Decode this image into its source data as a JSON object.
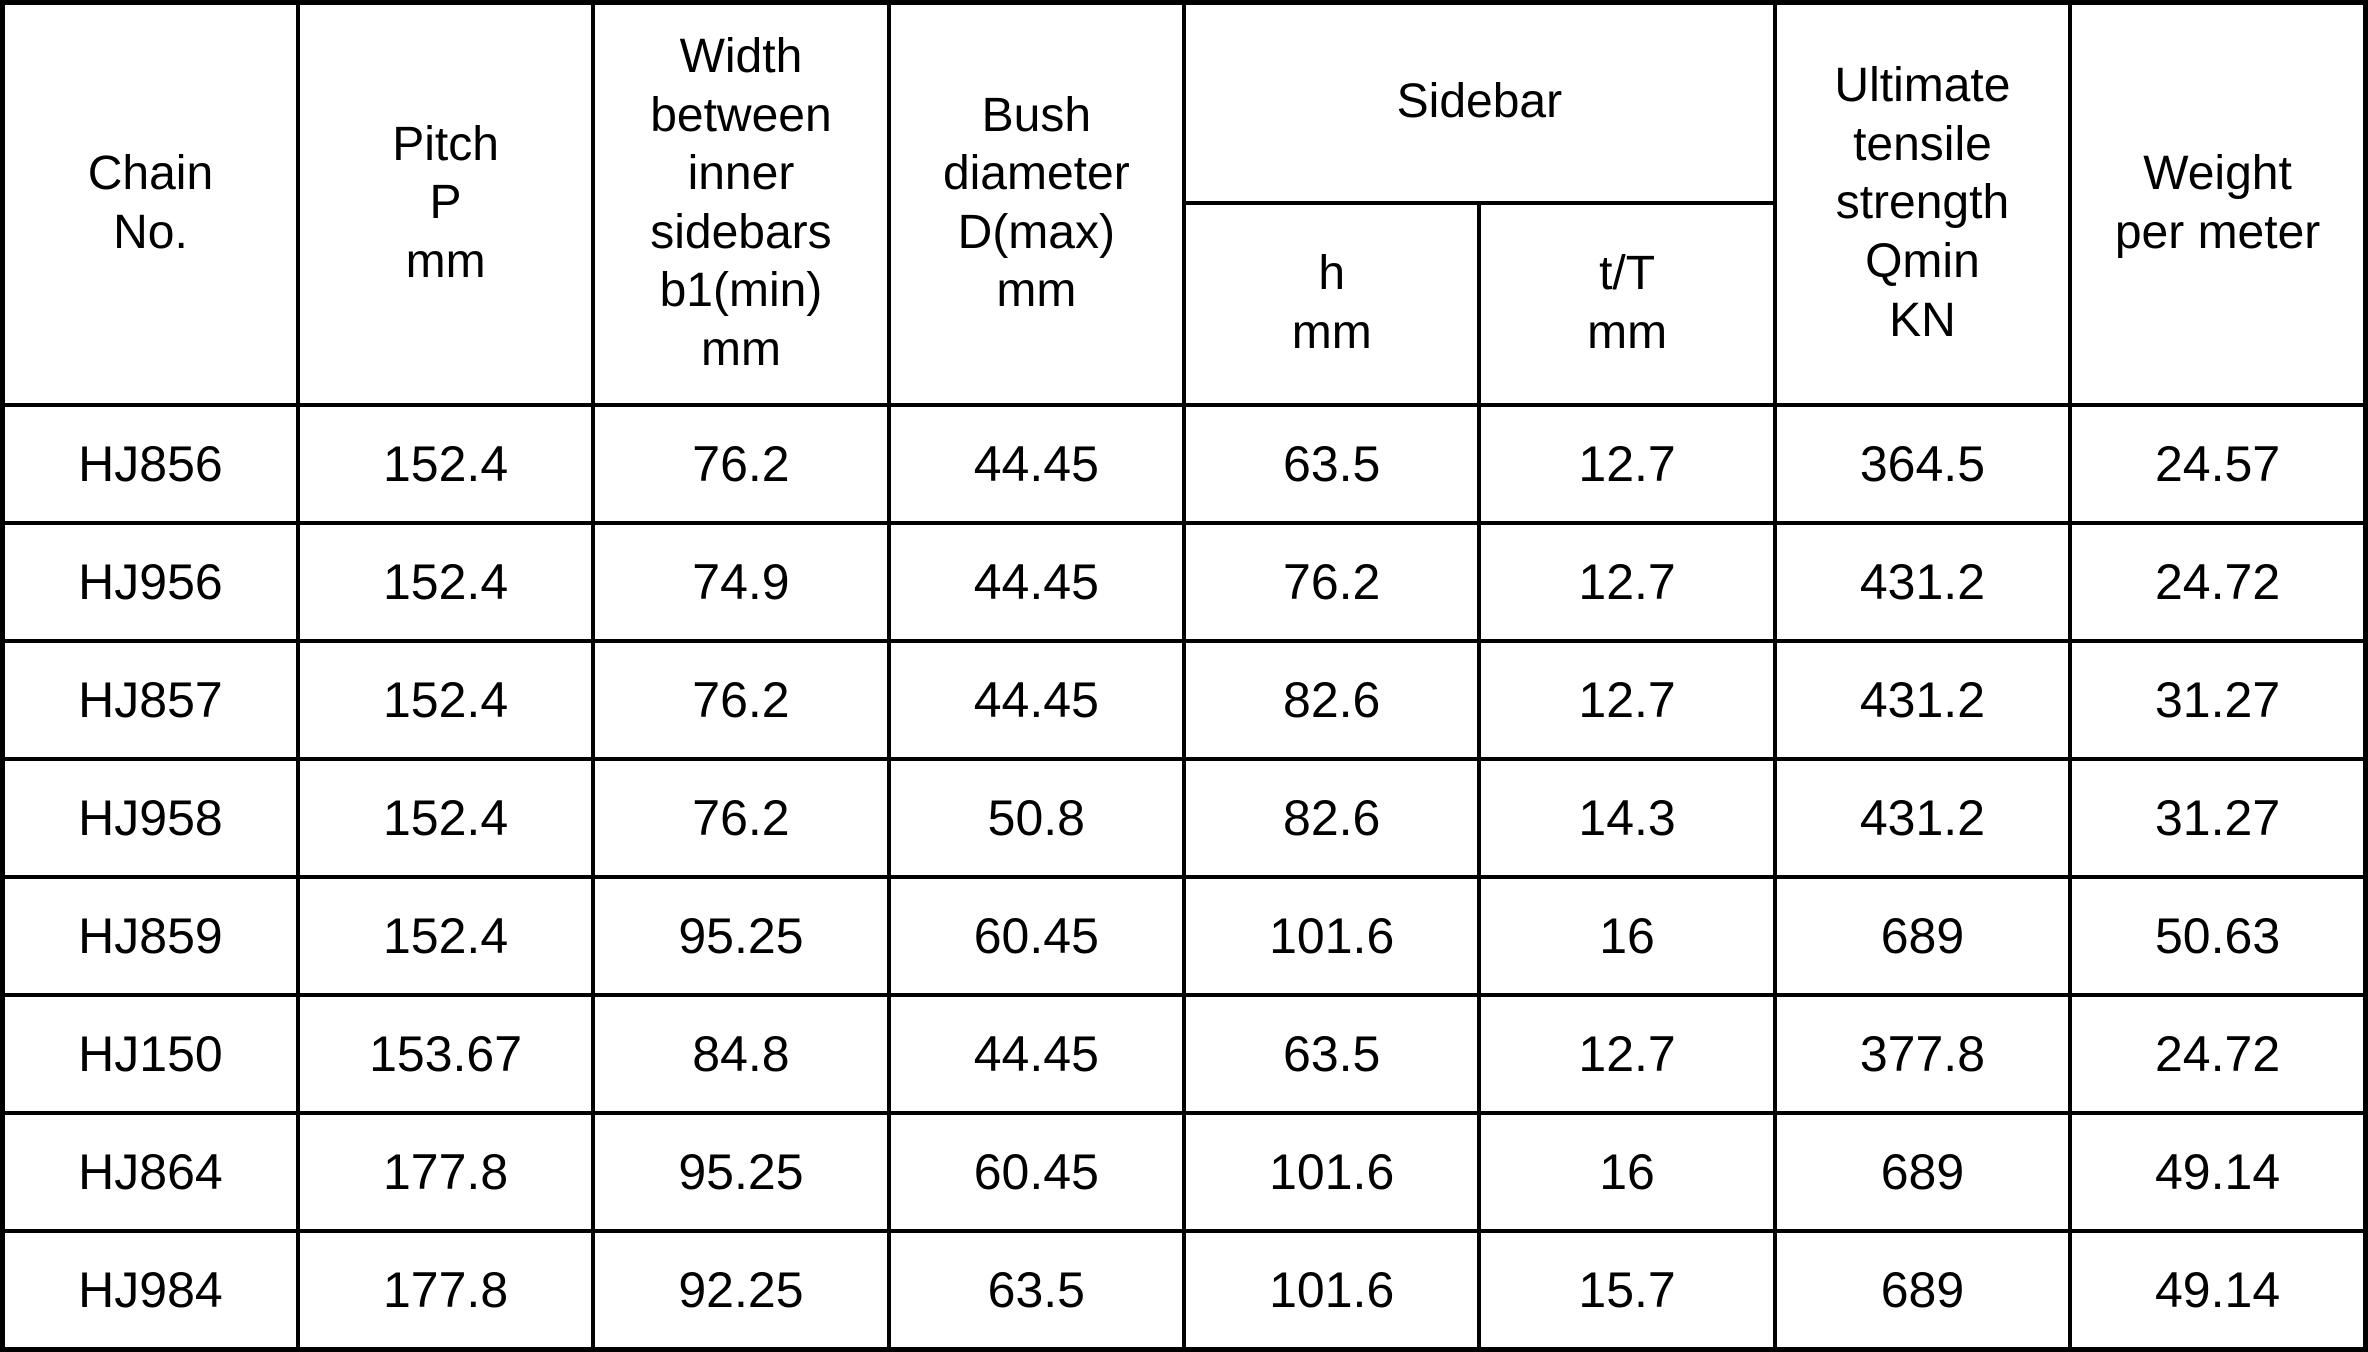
{
  "table": {
    "header": {
      "chain_no": "Chain\nNo.",
      "pitch": "Pitch\nP\nmm",
      "width_between_inner_sidebars": "Width\nbetween\ninner\nsidebars\nb1(min)\nmm",
      "bush_diameter": "Bush\ndiameter\nD(max)\nmm",
      "sidebar_group": "Sidebar",
      "sidebar_h": "h\nmm",
      "sidebar_tT": "t/T\nmm",
      "ultimate_tensile_strength": "Ultimate\ntensile\nstrength\nQmin\nKN",
      "weight_per_meter": "Weight\nper meter"
    },
    "rows": [
      [
        "HJ856",
        "152.4",
        "76.2",
        "44.45",
        "63.5",
        "12.7",
        "364.5",
        "24.57"
      ],
      [
        "HJ956",
        "152.4",
        "74.9",
        "44.45",
        "76.2",
        "12.7",
        "431.2",
        "24.72"
      ],
      [
        "HJ857",
        "152.4",
        "76.2",
        "44.45",
        "82.6",
        "12.7",
        "431.2",
        "31.27"
      ],
      [
        "HJ958",
        "152.4",
        "76.2",
        "50.8",
        "82.6",
        "14.3",
        "431.2",
        "31.27"
      ],
      [
        "HJ859",
        "152.4",
        "95.25",
        "60.45",
        "101.6",
        "16",
        "689",
        "50.63"
      ],
      [
        "HJ150",
        "153.67",
        "84.8",
        "44.45",
        "63.5",
        "12.7",
        "377.8",
        "24.72"
      ],
      [
        "HJ864",
        "177.8",
        "95.25",
        "60.45",
        "101.6",
        "16",
        "689",
        "49.14"
      ],
      [
        "HJ984",
        "177.8",
        "92.25",
        "63.5",
        "101.6",
        "15.7",
        "689",
        "49.14"
      ]
    ]
  },
  "colors": {
    "text": "#000000",
    "background": "#ffffff",
    "border": "#000000"
  }
}
